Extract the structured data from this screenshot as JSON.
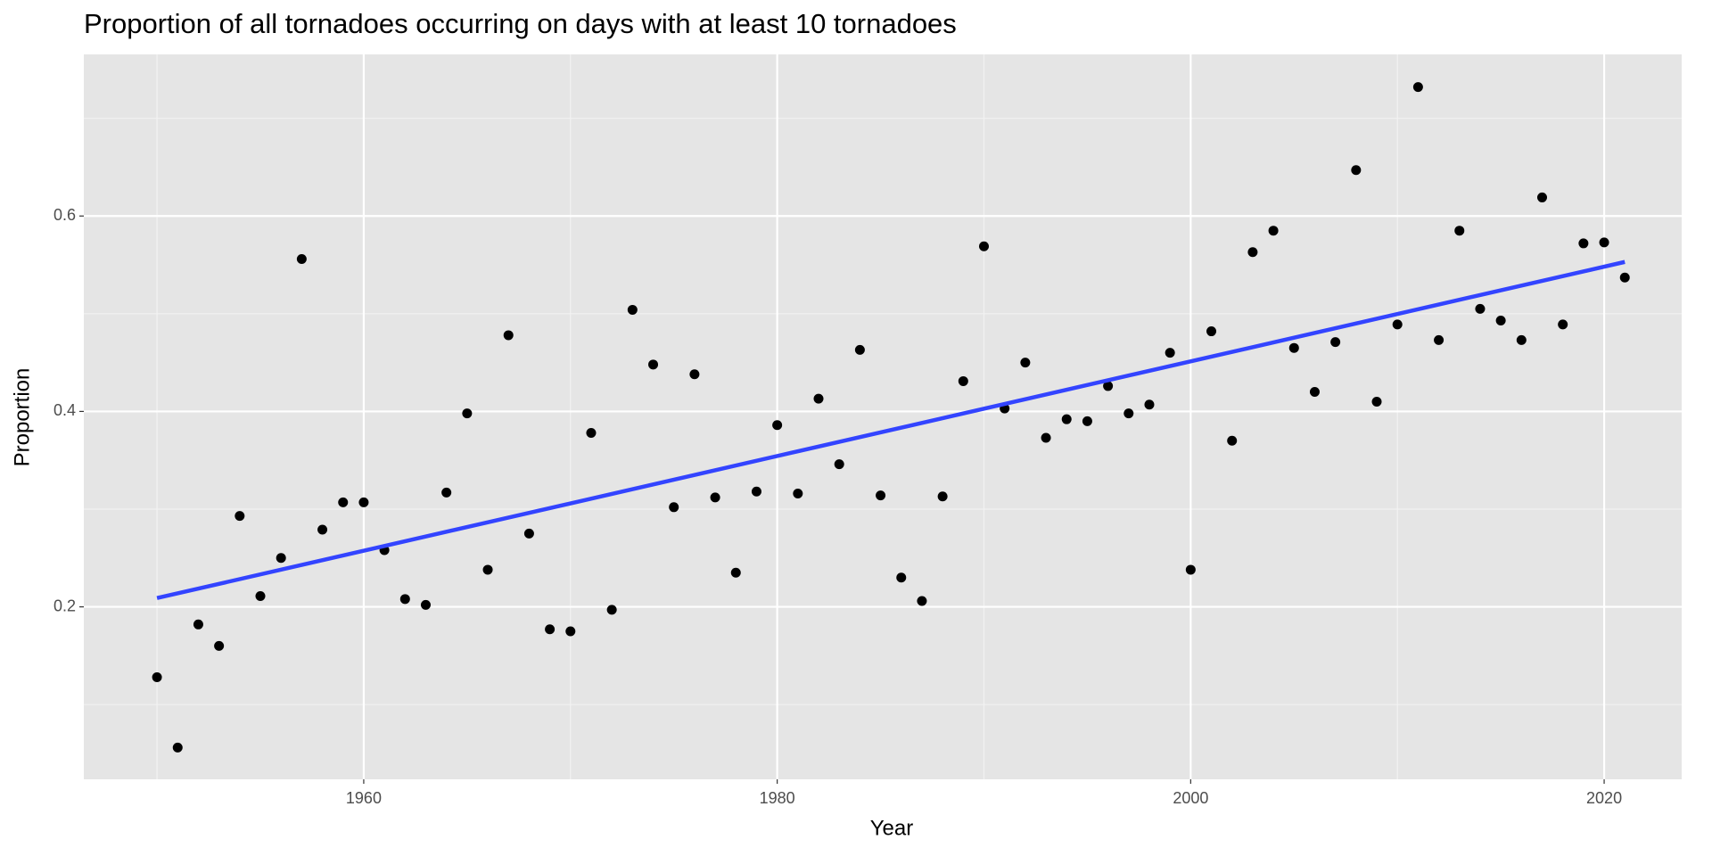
{
  "chart_data": {
    "type": "scatter",
    "title": "Proportion of all tornadoes occurring on days with at least 10 tornadoes",
    "x_label": "Year",
    "y_label": "Proportion",
    "xlim": [
      1946.46,
      2023.75
    ],
    "ylim": [
      0.0235,
      0.7654
    ],
    "xticks": [
      1960,
      1980,
      2000,
      2020
    ],
    "yticks": [
      0.2,
      0.4,
      0.6
    ],
    "minor_xticks": [
      1950,
      1970,
      1990,
      2010
    ],
    "minor_yticks": [
      0.1,
      0.3,
      0.5,
      0.7
    ],
    "grid": true,
    "series": [
      {
        "color": "#000000",
        "x": [
          1950,
          1951,
          1952,
          1953,
          1954,
          1955,
          1956,
          1957,
          1958,
          1959,
          1960,
          1961,
          1962,
          1963,
          1964,
          1965,
          1966,
          1967,
          1968,
          1969,
          1970,
          1971,
          1972,
          1973,
          1974,
          1975,
          1976,
          1977,
          1978,
          1979,
          1980,
          1981,
          1982,
          1983,
          1984,
          1985,
          1986,
          1987,
          1988,
          1989,
          1990,
          1991,
          1992,
          1993,
          1994,
          1995,
          1996,
          1997,
          1998,
          1999,
          2000,
          2001,
          2002,
          2003,
          2004,
          2005,
          2006,
          2007,
          2008,
          2009,
          2010,
          2011,
          2012,
          2013,
          2014,
          2015,
          2016,
          2017,
          2018,
          2019,
          2020,
          2021
        ],
        "values": [
          0.128,
          0.056,
          0.182,
          0.16,
          0.293,
          0.211,
          0.25,
          0.556,
          0.279,
          0.307,
          0.307,
          0.258,
          0.208,
          0.202,
          0.317,
          0.398,
          0.238,
          0.478,
          0.275,
          0.177,
          0.175,
          0.378,
          0.197,
          0.504,
          0.448,
          0.302,
          0.438,
          0.312,
          0.235,
          0.318,
          0.386,
          0.316,
          0.413,
          0.346,
          0.463,
          0.314,
          0.23,
          0.206,
          0.313,
          0.431,
          0.569,
          0.403,
          0.45,
          0.373,
          0.392,
          0.39,
          0.426,
          0.398,
          0.407,
          0.46,
          0.238,
          0.482,
          0.37,
          0.563,
          0.585,
          0.465,
          0.42,
          0.471,
          0.647,
          0.41,
          0.489,
          0.732,
          0.473,
          0.585,
          0.505,
          0.493,
          0.473,
          0.619,
          0.489,
          0.572,
          0.573,
          0.537
        ]
      }
    ],
    "trend": {
      "color": "#3344ff",
      "x": [
        1950,
        2021
      ],
      "values": [
        0.209,
        0.553
      ]
    }
  }
}
